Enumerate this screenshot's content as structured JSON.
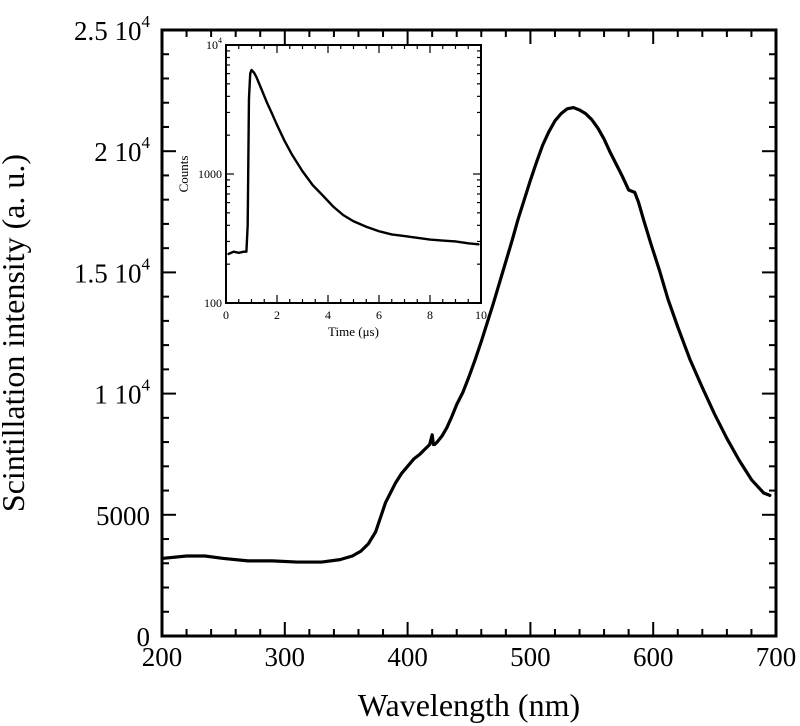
{
  "chart_data": [
    {
      "type": "line",
      "xlabel": "Wavelength (nm)",
      "ylabel": "Scintillation intensity (a. u.)",
      "xlim": [
        200,
        700
      ],
      "ylim": [
        0,
        25000
      ],
      "x_ticks": [
        {
          "value": 200,
          "label": "200"
        },
        {
          "value": 300,
          "label": "300"
        },
        {
          "value": 400,
          "label": "400"
        },
        {
          "value": 500,
          "label": "500"
        },
        {
          "value": 600,
          "label": "600"
        },
        {
          "value": 700,
          "label": "700"
        }
      ],
      "y_ticks": [
        {
          "value": 0,
          "label": "0",
          "mantissa": "0",
          "exponent": ""
        },
        {
          "value": 5000,
          "label": "5000",
          "mantissa": "5000",
          "exponent": ""
        },
        {
          "value": 10000,
          "label": "1 10^4",
          "mantissa": "1 10",
          "exponent": "4"
        },
        {
          "value": 15000,
          "label": "1.5 10^4",
          "mantissa": "1.5 10",
          "exponent": "4"
        },
        {
          "value": 20000,
          "label": "2 10^4",
          "mantissa": "2 10",
          "exponent": "4"
        },
        {
          "value": 25000,
          "label": "2.5 10^4",
          "mantissa": "2.5 10",
          "exponent": "4"
        }
      ],
      "series": [
        {
          "color": "#000000",
          "x": [
            200,
            220,
            235,
            250,
            270,
            290,
            310,
            330,
            345,
            355,
            362,
            368,
            374,
            378,
            382,
            386,
            390,
            395,
            400,
            405,
            410,
            415,
            418,
            420,
            421,
            422,
            424,
            428,
            432,
            436,
            440,
            445,
            450,
            455,
            460,
            465,
            470,
            475,
            480,
            485,
            490,
            495,
            500,
            505,
            510,
            515,
            520,
            525,
            530,
            535,
            540,
            545,
            550,
            555,
            560,
            565,
            570,
            575,
            580,
            585,
            588,
            592,
            598,
            605,
            612,
            620,
            630,
            640,
            650,
            660,
            670,
            680,
            690,
            695
          ],
          "y": [
            3200,
            3300,
            3300,
            3200,
            3100,
            3100,
            3050,
            3050,
            3150,
            3300,
            3500,
            3800,
            4300,
            4900,
            5500,
            5900,
            6300,
            6700,
            7000,
            7300,
            7500,
            7750,
            7900,
            8300,
            7900,
            7900,
            8000,
            8250,
            8600,
            9050,
            9550,
            10050,
            10700,
            11400,
            12150,
            12950,
            13750,
            14600,
            15450,
            16300,
            17200,
            18000,
            18800,
            19550,
            20250,
            20800,
            21250,
            21550,
            21750,
            21800,
            21700,
            21550,
            21300,
            20950,
            20500,
            19950,
            19450,
            18950,
            18400,
            18300,
            17900,
            17200,
            16200,
            15100,
            13900,
            12750,
            11400,
            10250,
            9150,
            8150,
            7250,
            6450,
            5900,
            5800
          ]
        }
      ]
    },
    {
      "type": "line",
      "xlabel": "Time (μs)",
      "ylabel": "Counts",
      "xlim": [
        0,
        10
      ],
      "ylim": [
        100,
        10000
      ],
      "y_scale": "log",
      "x_ticks": [
        {
          "value": 0,
          "label": "0"
        },
        {
          "value": 2,
          "label": "2"
        },
        {
          "value": 4,
          "label": "4"
        },
        {
          "value": 6,
          "label": "6"
        },
        {
          "value": 8,
          "label": "8"
        },
        {
          "value": 10,
          "label": "10"
        }
      ],
      "y_ticks": [
        {
          "value": 100,
          "label": "100",
          "mantissa": "100",
          "exponent": ""
        },
        {
          "value": 1000,
          "label": "1000",
          "mantissa": "1000",
          "exponent": ""
        },
        {
          "value": 10000,
          "label": "10^4",
          "mantissa": "10",
          "exponent": "4"
        }
      ],
      "series": [
        {
          "color": "#000000",
          "x": [
            0.1,
            0.3,
            0.5,
            0.7,
            0.8,
            0.85,
            0.9,
            0.95,
            1.0,
            1.1,
            1.2,
            1.4,
            1.6,
            1.8,
            2.0,
            2.3,
            2.6,
            3.0,
            3.4,
            3.8,
            4.2,
            4.6,
            5.0,
            5.5,
            6.0,
            6.5,
            7.0,
            7.5,
            8.0,
            8.5,
            9.0,
            9.5,
            9.9
          ],
          "y": [
            240,
            250,
            245,
            250,
            250,
            400,
            3800,
            6000,
            6400,
            6100,
            5600,
            4500,
            3600,
            2950,
            2400,
            1800,
            1400,
            1050,
            820,
            680,
            560,
            480,
            430,
            390,
            360,
            340,
            330,
            320,
            310,
            305,
            300,
            290,
            285
          ]
        }
      ]
    }
  ]
}
